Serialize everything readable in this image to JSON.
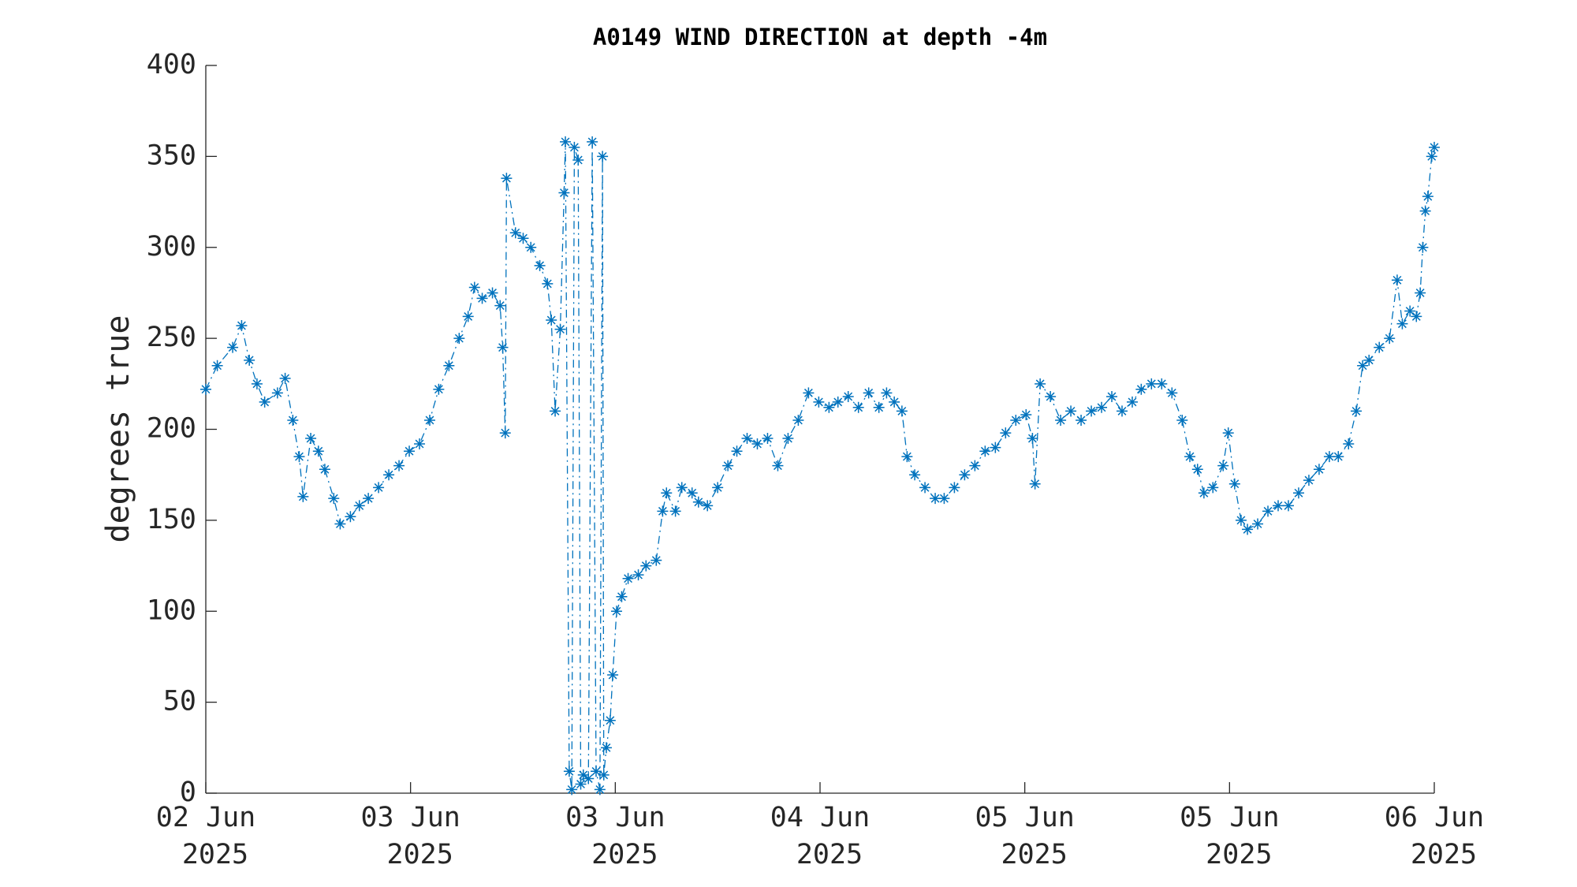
{
  "chart_data": {
    "type": "line",
    "title": "A0149 WIND DIRECTION at depth -4m",
    "y_label": "degrees true",
    "color": "#0072bd",
    "marker": "asterisk",
    "x": [
      0,
      0.9,
      2.1,
      2.8,
      3.4,
      4.0,
      4.6,
      5.6,
      6.2,
      6.8,
      7.3,
      7.6,
      8.2,
      8.8,
      9.3,
      10.0,
      10.5,
      11.3,
      12.0,
      12.7,
      13.5,
      14.3,
      15.1,
      15.9,
      16.7,
      17.5,
      18.2,
      19.0,
      19.8,
      20.5,
      21.0,
      21.6,
      22.4,
      23.0,
      23.2,
      23.4,
      23.5,
      24.2,
      24.8,
      25.4,
      26.1,
      26.7,
      27.0,
      27.3,
      27.7,
      28.0,
      28.1,
      28.4,
      28.6,
      28.8,
      29.1,
      29.3,
      29.5,
      29.9,
      30.2,
      30.5,
      30.8,
      31.0,
      31.1,
      31.3,
      31.6,
      31.8,
      32.1,
      32.5,
      33.0,
      33.8,
      34.4,
      35.2,
      35.7,
      36.0,
      36.7,
      37.2,
      38.0,
      38.5,
      39.2,
      40.0,
      40.8,
      41.5,
      42.3,
      43.1,
      43.9,
      44.7,
      45.5,
      46.3,
      47.1,
      47.9,
      48.7,
      49.4,
      50.2,
      51.0,
      51.8,
      52.6,
      53.2,
      53.8,
      54.4,
      54.8,
      55.4,
      56.2,
      57.0,
      57.7,
      58.5,
      59.3,
      60.1,
      60.9,
      61.7,
      62.5,
      63.3,
      64.1,
      64.6,
      64.8,
      65.2,
      66.0,
      66.8,
      67.6,
      68.4,
      69.2,
      70.0,
      70.8,
      71.6,
      72.4,
      73.1,
      73.9,
      74.7,
      75.5,
      76.3,
      76.9,
      77.5,
      78.0,
      78.7,
      79.5,
      79.9,
      80.4,
      80.9,
      81.4,
      82.2,
      83.0,
      83.8,
      84.6,
      85.4,
      86.2,
      87.0,
      87.8,
      88.5,
      89.3,
      89.9,
      90.4,
      90.9,
      91.7,
      92.5,
      93.1,
      93.5,
      94.1,
      94.6,
      94.9,
      95.1,
      95.3,
      95.5,
      95.8,
      96.0
    ],
    "values": [
      222,
      235,
      245,
      257,
      238,
      225,
      215,
      220,
      228,
      205,
      185,
      163,
      195,
      188,
      178,
      162,
      148,
      152,
      158,
      162,
      168,
      175,
      180,
      188,
      192,
      205,
      222,
      235,
      250,
      262,
      278,
      272,
      275,
      268,
      245,
      198,
      338,
      308,
      305,
      300,
      290,
      280,
      260,
      210,
      255,
      330,
      358,
      12,
      2,
      355,
      348,
      5,
      10,
      8,
      358,
      12,
      2,
      350,
      10,
      25,
      40,
      65,
      100,
      108,
      118,
      120,
      125,
      128,
      155,
      165,
      155,
      168,
      165,
      160,
      158,
      168,
      180,
      188,
      195,
      192,
      195,
      180,
      195,
      205,
      220,
      215,
      212,
      215,
      218,
      212,
      220,
      212,
      220,
      215,
      210,
      185,
      175,
      168,
      162,
      162,
      168,
      175,
      180,
      188,
      190,
      198,
      205,
      208,
      195,
      170,
      225,
      218,
      205,
      210,
      205,
      210,
      212,
      218,
      210,
      215,
      222,
      225,
      225,
      220,
      205,
      185,
      178,
      165,
      168,
      180,
      198,
      170,
      150,
      145,
      148,
      155,
      158,
      158,
      165,
      172,
      178,
      185,
      185,
      192,
      210,
      235,
      238,
      245,
      250,
      282,
      258,
      265,
      262,
      275,
      300,
      320,
      328,
      350,
      355
    ],
    "xlim": [
      0,
      96
    ],
    "xticks": [
      {
        "value": 0,
        "label": "02 Jun 2025"
      },
      {
        "value": 16,
        "label": "03 Jun 2025"
      },
      {
        "value": 32,
        "label": "03 Jun 2025"
      },
      {
        "value": 48,
        "label": "04 Jun 2025"
      },
      {
        "value": 64,
        "label": "05 Jun 2025"
      },
      {
        "value": 80,
        "label": "05 Jun 2025"
      },
      {
        "value": 96,
        "label": "06 Jun 2025"
      }
    ],
    "ylim": [
      0,
      400
    ],
    "yticks": [
      0,
      50,
      100,
      150,
      200,
      250,
      300,
      350,
      400
    ],
    "grid": false
  }
}
